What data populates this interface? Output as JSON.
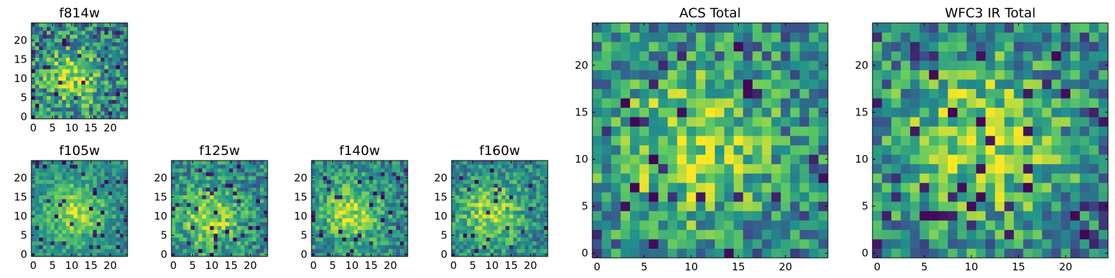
{
  "figure": {
    "colormap": "viridis",
    "colormap_stops": [
      "#440154",
      "#3b528b",
      "#21918c",
      "#5ec962",
      "#fde725"
    ]
  },
  "chart_data": [
    {
      "id": "f814w",
      "type": "heatmap",
      "title": "f814w",
      "grid": [
        25,
        25
      ],
      "xlim": [
        0,
        24
      ],
      "ylim": [
        0,
        24
      ],
      "xticks": [
        0,
        5,
        10,
        15,
        20
      ],
      "yticks": [
        0,
        5,
        10,
        15,
        20
      ],
      "peak": [
        10,
        10
      ],
      "spread": 5,
      "noise": 0.32,
      "seed": 11
    },
    {
      "id": "f105w",
      "type": "heatmap",
      "title": "f105w",
      "grid": [
        25,
        25
      ],
      "xlim": [
        0,
        24
      ],
      "ylim": [
        0,
        24
      ],
      "xticks": [
        0,
        5,
        10,
        15,
        20
      ],
      "yticks": [
        0,
        5,
        10,
        15,
        20
      ],
      "peak": [
        11,
        11
      ],
      "spread": 6,
      "noise": 0.18,
      "seed": 23
    },
    {
      "id": "f125w",
      "type": "heatmap",
      "title": "f125w",
      "grid": [
        25,
        25
      ],
      "xlim": [
        0,
        24
      ],
      "ylim": [
        0,
        24
      ],
      "xticks": [
        0,
        5,
        10,
        15,
        20
      ],
      "yticks": [
        0,
        5,
        10,
        15,
        20
      ],
      "peak": [
        10,
        10
      ],
      "spread": 6,
      "noise": 0.24,
      "seed": 37
    },
    {
      "id": "f140w",
      "type": "heatmap",
      "title": "f140w",
      "grid": [
        25,
        25
      ],
      "xlim": [
        0,
        24
      ],
      "ylim": [
        0,
        24
      ],
      "xticks": [
        0,
        5,
        10,
        15,
        20
      ],
      "yticks": [
        0,
        5,
        10,
        15,
        20
      ],
      "peak": [
        10,
        11
      ],
      "spread": 6,
      "noise": 0.22,
      "seed": 41
    },
    {
      "id": "f160w",
      "type": "heatmap",
      "title": "f160w",
      "grid": [
        25,
        25
      ],
      "xlim": [
        0,
        24
      ],
      "ylim": [
        0,
        24
      ],
      "xticks": [
        0,
        5,
        10,
        15,
        20
      ],
      "yticks": [
        0,
        5,
        10,
        15,
        20
      ],
      "peak": [
        10,
        11
      ],
      "spread": 6,
      "noise": 0.22,
      "seed": 53
    },
    {
      "id": "acs-total",
      "type": "heatmap",
      "title": "ACS Total",
      "grid": [
        25,
        25
      ],
      "xlim": [
        0,
        24
      ],
      "ylim": [
        0,
        24
      ],
      "xticks": [
        0,
        5,
        10,
        15,
        20
      ],
      "yticks": [
        0,
        5,
        10,
        15,
        20
      ],
      "peak": [
        10,
        11
      ],
      "spread": 6,
      "noise": 0.3,
      "seed": 67
    },
    {
      "id": "wfc3-ir-total",
      "type": "heatmap",
      "title": "WFC3 IR Total",
      "grid": [
        25,
        25
      ],
      "xlim": [
        0,
        24
      ],
      "ylim": [
        0,
        24
      ],
      "xticks": [
        0,
        5,
        10,
        15,
        20
      ],
      "yticks": [
        0,
        5,
        10,
        15,
        20
      ],
      "peak": [
        11,
        12
      ],
      "spread": 6,
      "noise": 0.3,
      "seed": 79
    }
  ]
}
